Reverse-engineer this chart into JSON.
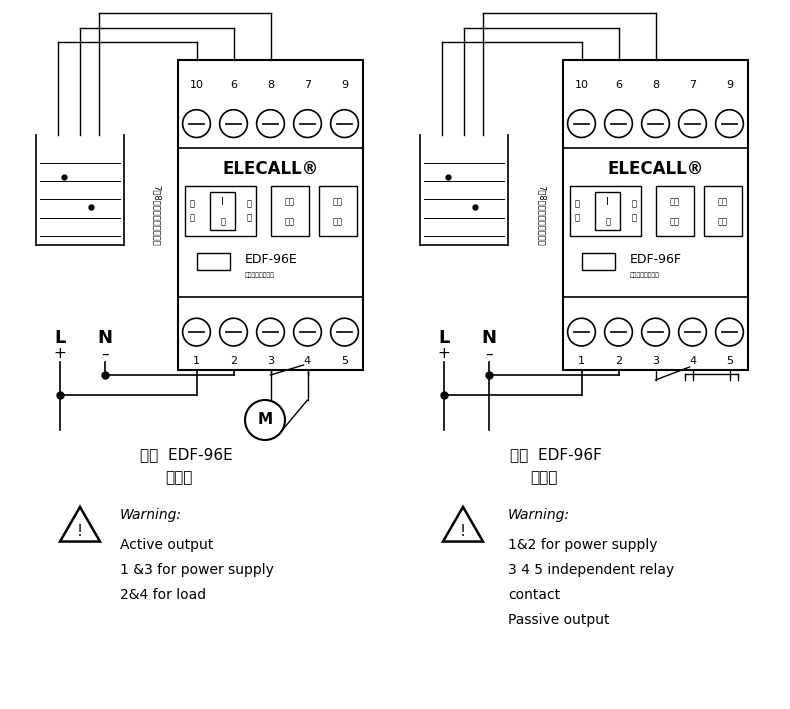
{
  "bg_color": "#ffffff",
  "line_color": "#000000",
  "fig_width": 7.9,
  "fig_height": 7.09,
  "left_model": "EDF-96E",
  "right_model": "EDF-96F",
  "brand": "ELECALL",
  "subtitle": "全自动水位控制器",
  "terminal_labels": [
    "10",
    "6",
    "8",
    "7",
    "9"
  ],
  "bottom_labels": [
    "1",
    "2",
    "3",
    "4",
    "5"
  ],
  "vertical_text": "7和8接水位电极一水池图",
  "left_caption1": "图一  EDF-96E",
  "left_caption2": "接线图",
  "right_caption1": "图二  EDF-96F",
  "right_caption2": "接线图",
  "warn_left": [
    "Warning:",
    "Active output",
    "1 &3 for power supply",
    "2&4 for load"
  ],
  "warn_right": [
    "Warning:",
    "1&2 for power supply",
    "3 4 5 independent relay",
    "contact",
    "Passive output"
  ]
}
